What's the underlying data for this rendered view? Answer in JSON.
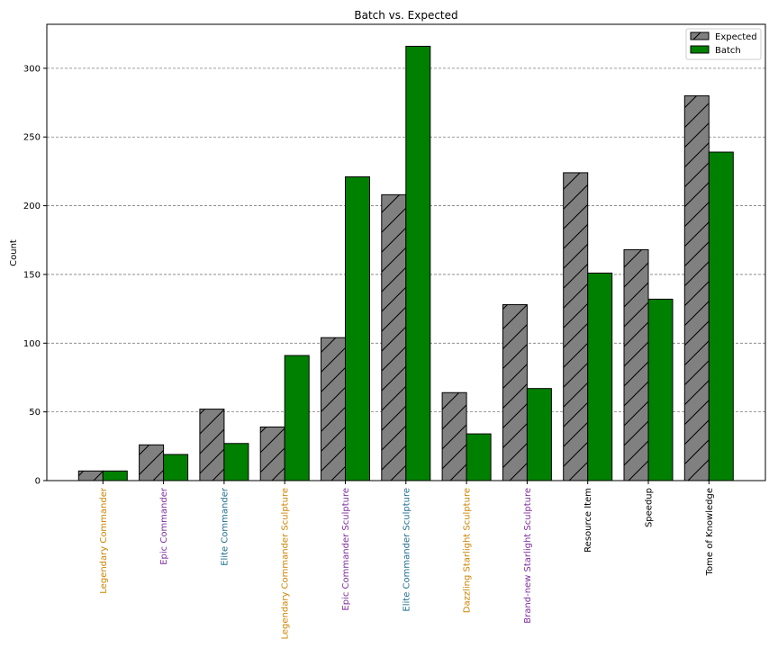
{
  "chart_data": {
    "type": "bar",
    "title": "Batch vs. Expected",
    "xlabel": "",
    "ylabel": "Count",
    "ylim": [
      0,
      332
    ],
    "yticks": [
      0,
      50,
      100,
      150,
      200,
      250,
      300
    ],
    "grid": "y-dashed",
    "legend_position": "top-right",
    "categories": [
      "Legendary Commander",
      "Epic Commander",
      "Elite Commander",
      "Legendary Commander Sculpture",
      "Epic Commander Sculpture",
      "Elite Commander Sculpture",
      "Dazzling Starlight Sculpture",
      "Brand-new Starlight Sculpture",
      "Resource Item",
      "Speedup",
      "Tome of Knowledge"
    ],
    "category_colors": [
      "#cc8400",
      "#7f2f9f",
      "#1f6f8f",
      "#cc8400",
      "#7f2f9f",
      "#1f6f8f",
      "#cc8400",
      "#7f2f9f",
      "#000000",
      "#000000",
      "#000000"
    ],
    "series": [
      {
        "name": "Expected",
        "color": "#808080",
        "hatch": "diagonal",
        "values": [
          7,
          26,
          52,
          39,
          104,
          208,
          64,
          128,
          224,
          168,
          280
        ]
      },
      {
        "name": "Batch",
        "color": "#008000",
        "hatch": "none",
        "values": [
          7,
          19,
          27,
          91,
          221,
          316,
          34,
          67,
          151,
          132,
          239
        ]
      }
    ]
  }
}
